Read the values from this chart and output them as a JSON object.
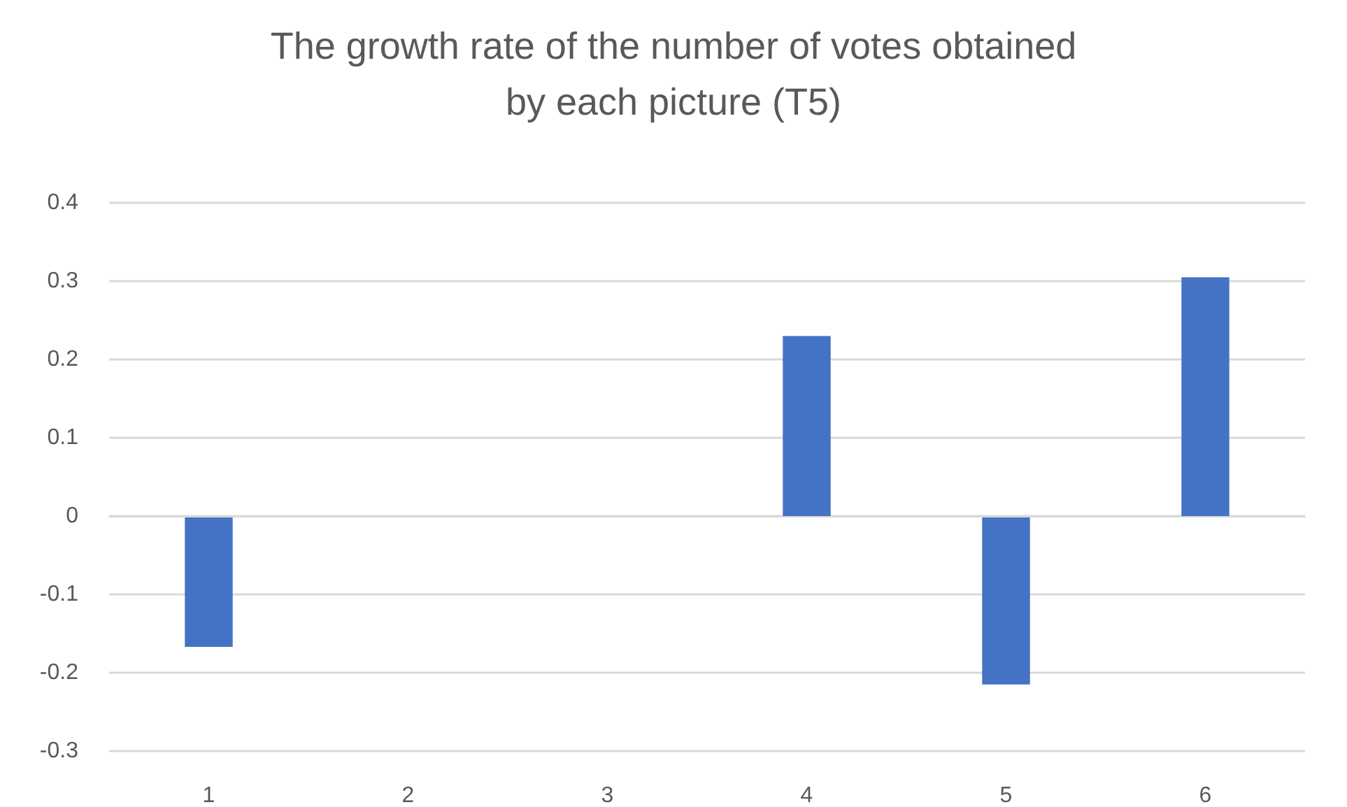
{
  "chart_data": {
    "type": "bar",
    "title": "The growth rate of the number of votes obtained\nby each picture (T5)",
    "categories": [
      "1",
      "2",
      "3",
      "4",
      "5",
      "6"
    ],
    "series": [
      {
        "color": "#4472c4",
        "values": [
          -0.167,
          0,
          0,
          0.23,
          -0.215,
          0.305
        ]
      }
    ],
    "ylim": [
      -0.3,
      0.4
    ],
    "yticks": [
      -0.3,
      -0.2,
      -0.1,
      0,
      0.1,
      0.2,
      0.3,
      0.4
    ],
    "grid": "y"
  }
}
